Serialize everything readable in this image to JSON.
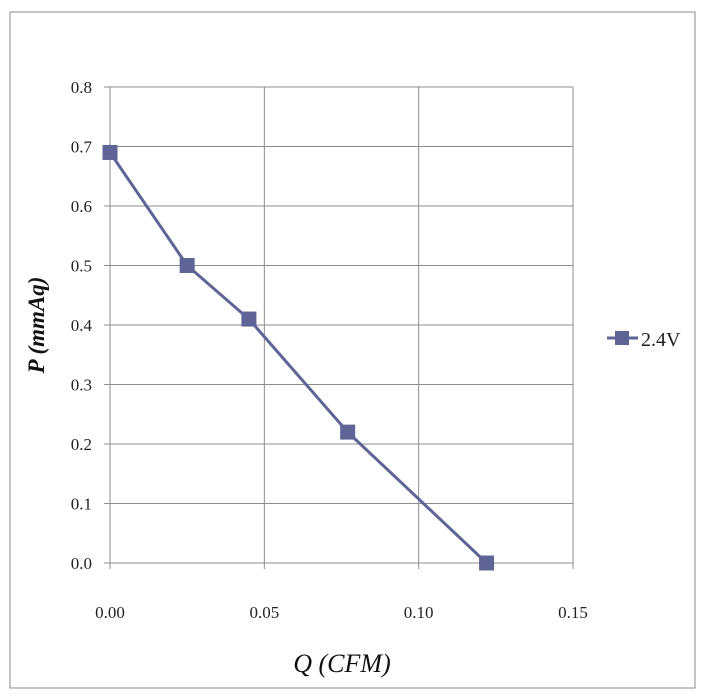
{
  "chart_data": {
    "type": "line",
    "xlabel": "Q (CFM)",
    "ylabel": "P  (mmAq)",
    "xlim": [
      0,
      0.15
    ],
    "ylim": [
      0,
      0.8
    ],
    "x_ticks": [
      "0.00",
      "0.05",
      "0.10",
      "0.15"
    ],
    "y_ticks": [
      "0.0",
      "0.1",
      "0.2",
      "0.3",
      "0.4",
      "0.5",
      "0.6",
      "0.7",
      "0.8"
    ],
    "grid": true,
    "legend_position": "right",
    "series": [
      {
        "name": "2.4V",
        "color": "#5f6496",
        "marker": "square",
        "x": [
          0.0,
          0.025,
          0.045,
          0.077,
          0.122
        ],
        "y": [
          0.69,
          0.5,
          0.41,
          0.22,
          0.0
        ]
      }
    ]
  }
}
